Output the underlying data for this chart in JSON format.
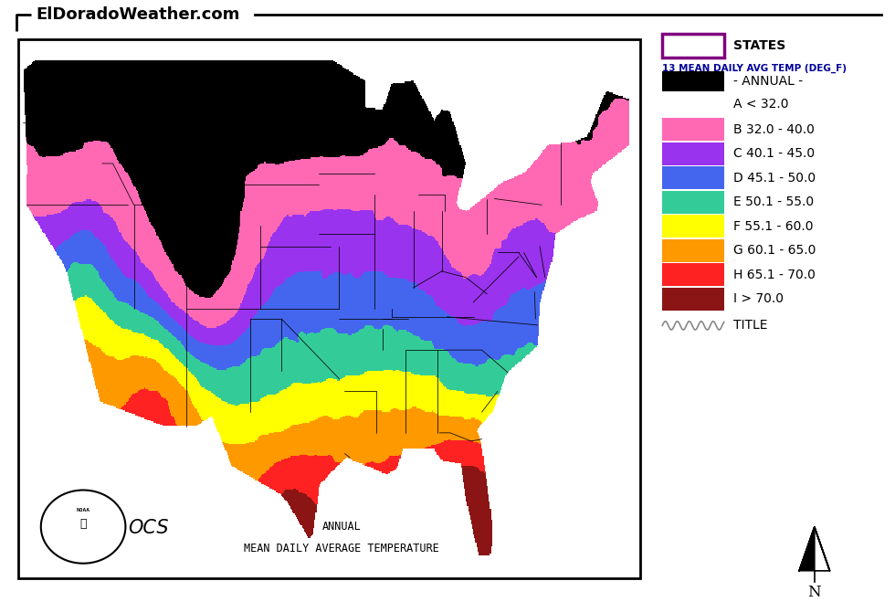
{
  "title_text": "ElDoradoWeather.com",
  "legend_title": "13 MEAN DAILY AVG TEMP (DEG_F)",
  "legend_subtitle": "- ANNUAL -",
  "legend_entries": [
    {
      "label": "A < 32.0",
      "color": "#000000"
    },
    {
      "label": "B 32.0 - 40.0",
      "color": "#FF69B4"
    },
    {
      "label": "C 40.1 - 45.0",
      "color": "#9933EE"
    },
    {
      "label": "D 45.1 - 50.0",
      "color": "#4466EE"
    },
    {
      "label": "E 50.1 - 55.0",
      "color": "#33CC99"
    },
    {
      "label": "F 55.1 - 60.0",
      "color": "#FFFF00"
    },
    {
      "label": "G 60.1 - 65.0",
      "color": "#FF9900"
    },
    {
      "label": "H 65.1 - 70.0",
      "color": "#FF2222"
    },
    {
      "label": "I > 70.0",
      "color": "#8B1515"
    }
  ],
  "states_legend_color": "#800080",
  "map_title_line1": "ANNUAL",
  "map_title_line2": "MEAN DAILY AVERAGE TEMPERATURE",
  "bg_color": "#FFFFFF",
  "map_box_color": "#000000"
}
